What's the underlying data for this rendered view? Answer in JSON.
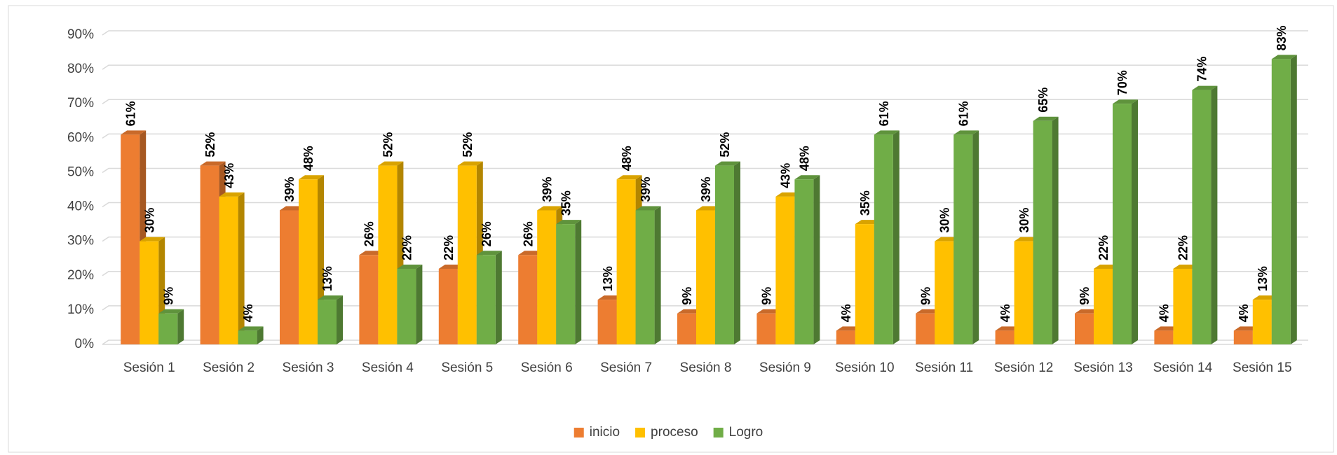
{
  "chart_data": {
    "type": "bar3d",
    "categories": [
      "Sesión 1",
      "Sesión 2",
      "Sesión 3",
      "Sesión 4",
      "Sesión 5",
      "Sesión 6",
      "Sesión 7",
      "Sesión 8",
      "Sesión 9",
      "Sesión 10",
      "Sesión 11",
      "Sesión 12",
      "Sesión 13",
      "Sesión 14",
      "Sesión 15"
    ],
    "series": [
      {
        "name": "inicio",
        "color": "#ED7D31",
        "values": [
          61,
          52,
          39,
          26,
          22,
          26,
          13,
          9,
          9,
          4,
          9,
          4,
          9,
          4,
          4
        ],
        "value_labels": [
          "61%",
          "52%",
          "39%",
          "26%",
          "22%",
          "26%",
          "13%",
          "9%",
          "9%",
          "4%",
          "9%",
          "4%",
          "9%",
          "4%",
          "4%"
        ]
      },
      {
        "name": "proceso",
        "color": "#FFC000",
        "values": [
          30,
          43,
          48,
          52,
          52,
          39,
          48,
          39,
          43,
          35,
          30,
          30,
          22,
          22,
          13
        ],
        "value_labels": [
          "30%",
          "43%",
          "48%",
          "52%",
          "52%",
          "39%",
          "48%",
          "39%",
          "43%",
          "35%",
          "30%",
          "30%",
          "22%",
          "22%",
          "13%"
        ]
      },
      {
        "name": "Logro",
        "color": "#70AD47",
        "values": [
          9,
          4,
          13,
          22,
          26,
          35,
          39,
          52,
          48,
          61,
          61,
          65,
          70,
          74,
          83
        ],
        "value_labels": [
          "9%",
          "4%",
          "13%",
          "22%",
          "26%",
          "35%",
          "39%",
          "52%",
          "48%",
          "61%",
          "61%",
          "65%",
          "70%",
          "74%",
          "83%"
        ]
      }
    ],
    "ylim": [
      0,
      90
    ],
    "yticks": [
      {
        "value": 0,
        "label": "0%"
      },
      {
        "value": 10,
        "label": "10%"
      },
      {
        "value": 20,
        "label": "20%"
      },
      {
        "value": 30,
        "label": "30%"
      },
      {
        "value": 40,
        "label": "40%"
      },
      {
        "value": 50,
        "label": "50%"
      },
      {
        "value": 60,
        "label": "60%"
      },
      {
        "value": 70,
        "label": "70%"
      },
      {
        "value": 80,
        "label": "80%"
      },
      {
        "value": 90,
        "label": "90%"
      }
    ],
    "grid": true,
    "legend": "bottom"
  }
}
